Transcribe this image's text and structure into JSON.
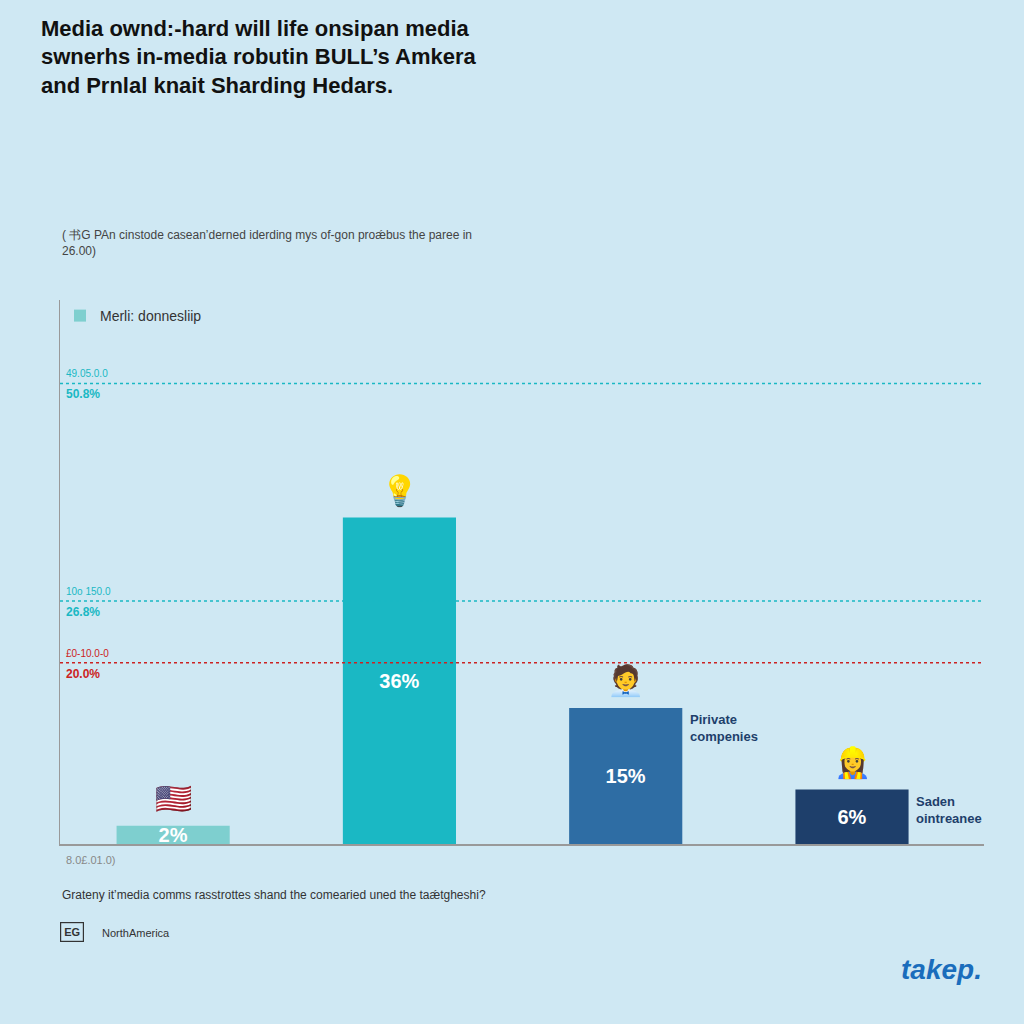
{
  "chart_data": {
    "type": "bar",
    "title": "Media ownd:-hard will life onsipan media\nswnerhs in-media robutin BULL’s Amkera\nand Prnlal knait Sharding Hedars.",
    "subtitle": "( 书G PAn cinstode caseanʼderned iderding mys of‐gon proǽbus the paree in\n26.00)",
    "categories": [
      null,
      null,
      null,
      null
    ],
    "series": [
      {
        "name": "Merli: donnesliip",
        "values": [
          2,
          36,
          15,
          6
        ],
        "value_labels": [
          "2%",
          "36%",
          "15%",
          "6%"
        ],
        "colors": [
          "#7ecfcf",
          "#1ab8c4",
          "#2e6da4",
          "#1e3f6b"
        ]
      }
    ],
    "data_labels": true,
    "legend": "upper left",
    "grid": false,
    "tick_labels": false,
    "ylim": [
      0,
      60
    ],
    "x_label": "8.0£.01.0)",
    "reference_lines": [
      {
        "y": 26.8,
        "label_top": "10o 150.0",
        "label": "26.8%",
        "color": "#1ab8c4"
      },
      {
        "y": 50.8,
        "label_top": "49.05.0.0",
        "label": "50.8%",
        "color": "#1ab8c4"
      },
      {
        "y": 20.0,
        "label_top": "£0-10.0-0",
        "label": "20.0%",
        "color": "#cc2222"
      }
    ],
    "annotations": [
      {
        "text": "Pirivate\ncompenies",
        "bar": 2
      },
      {
        "text": "Saden\nointreanee",
        "bar": 3
      }
    ],
    "icons": [
      {
        "text": "🇺🇸",
        "bar": 0
      },
      {
        "text": "💡",
        "bar": 1
      },
      {
        "text": "🧑‍💼",
        "bar": 2
      },
      {
        "text": "👷‍♀️",
        "bar": 3
      }
    ],
    "footer": "Grateny itʼmedia comms rasstrottes shand the comearied uned the taǽtgheshi?",
    "source_badge": "EG",
    "source": "NorthAmerica",
    "brand": "takep.",
    "brand_color": "#1a6dbc",
    "background_color": "#cfe8f3",
    "bar_label_color": "#ffffff",
    "annotation_color": "#1e3f6b",
    "title_color": "#111111",
    "subtitle_color": "#444444"
  }
}
